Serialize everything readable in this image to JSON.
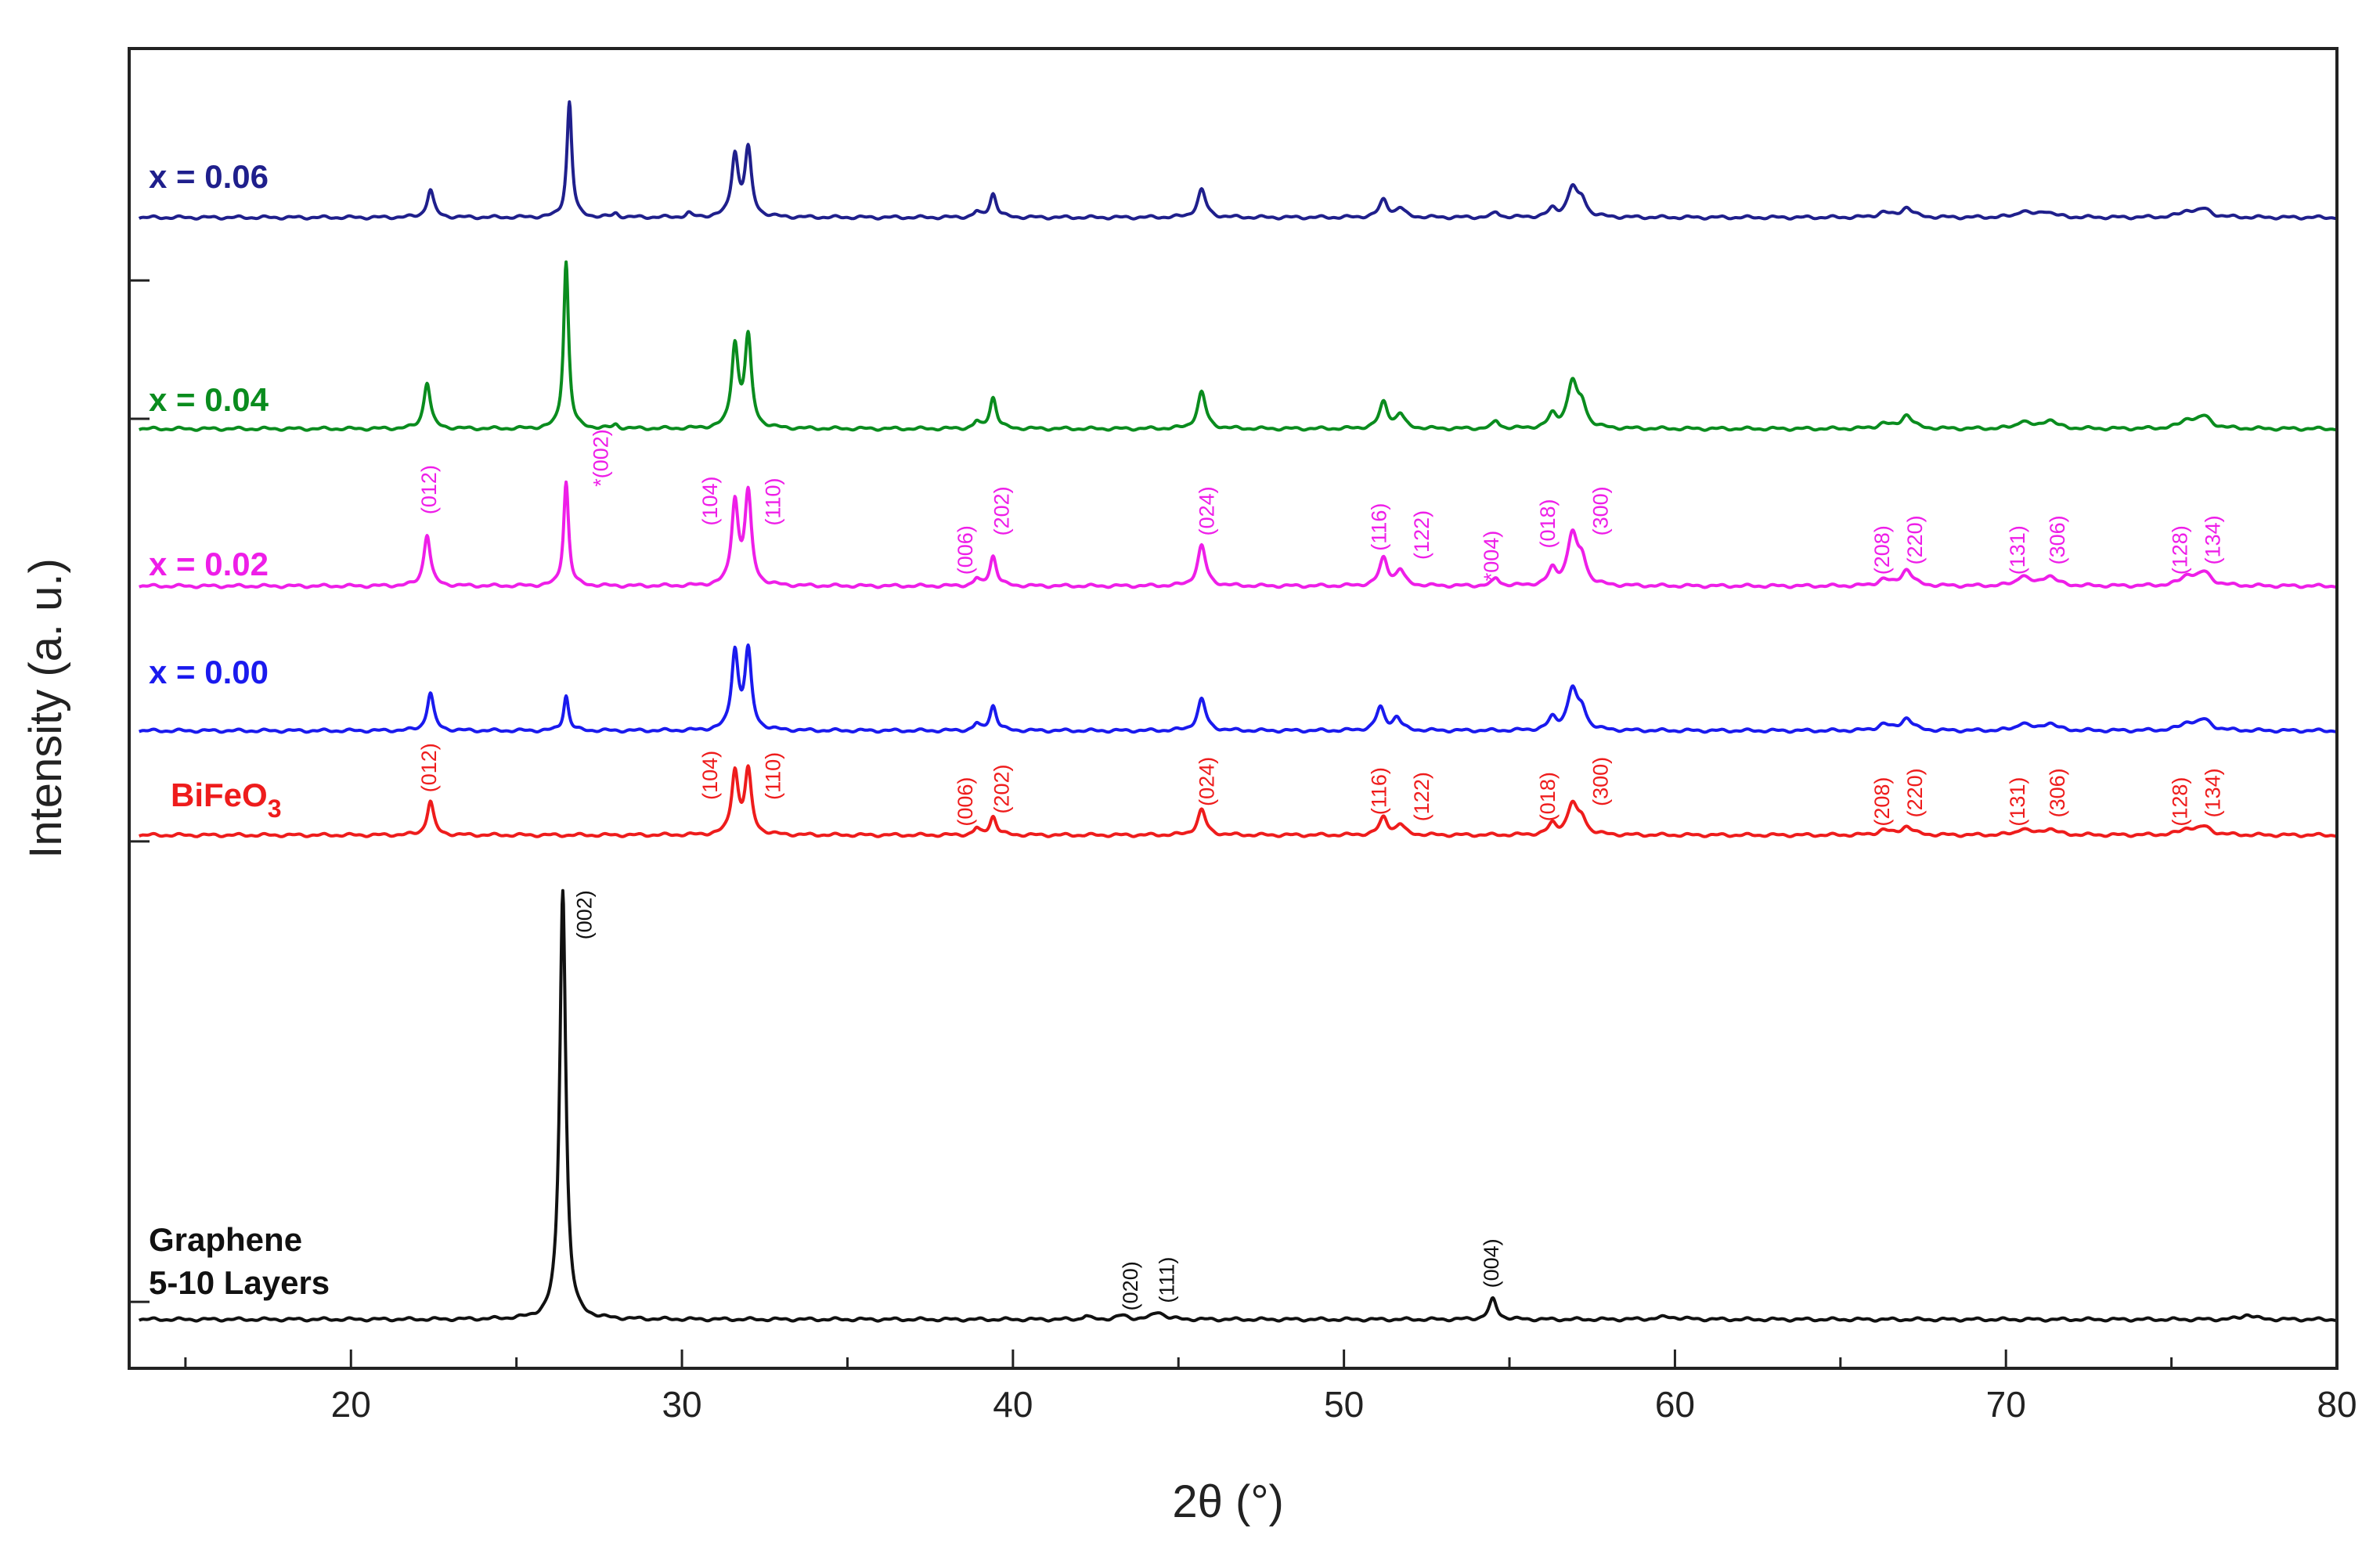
{
  "chart_data": {
    "type": "line",
    "title": "",
    "xlabel": "2θ (°)",
    "ylabel": "Intensity (a. u.)",
    "xlim": [
      13.3,
      80
    ],
    "ylim": [
      0,
      100
    ],
    "x_ticks": [
      20,
      30,
      40,
      50,
      60,
      70,
      80
    ],
    "x_tick_labels": [
      "20",
      "30",
      "40",
      "50",
      "60",
      "70",
      "80"
    ],
    "grid": false,
    "legend": "inline labels at left",
    "series": [
      {
        "name": "x = 0.06",
        "label": "x = 0.06",
        "color": "#1f1f8c",
        "baseline": 88,
        "peaks": [
          [
            22.4,
            2.2,
            0.12
          ],
          [
            26.6,
            9.2,
            0.09
          ],
          [
            28.0,
            0.3,
            0.1
          ],
          [
            30.2,
            0.3,
            0.1
          ],
          [
            31.6,
            4.9,
            0.12
          ],
          [
            32.0,
            5.3,
            0.12
          ],
          [
            38.9,
            0.4,
            0.1
          ],
          [
            39.4,
            1.9,
            0.12
          ],
          [
            45.7,
            2.2,
            0.15
          ],
          [
            51.2,
            1.4,
            0.15
          ],
          [
            51.7,
            0.7,
            0.15
          ],
          [
            54.6,
            0.4,
            0.12
          ],
          [
            56.3,
            0.6,
            0.15
          ],
          [
            56.9,
            2.3,
            0.18
          ],
          [
            57.2,
            1.2,
            0.15
          ],
          [
            66.3,
            0.4,
            0.2
          ],
          [
            67.0,
            0.8,
            0.2
          ],
          [
            70.5,
            0.5,
            0.2
          ],
          [
            71.2,
            0.5,
            0.25
          ],
          [
            75.5,
            0.5,
            0.25
          ],
          [
            76.0,
            0.6,
            0.25
          ]
        ]
      },
      {
        "name": "x = 0.04",
        "label": "x = 0.04",
        "color": "#0a8c1e",
        "baseline": 71.2,
        "peaks": [
          [
            22.3,
            3.7,
            0.12
          ],
          [
            26.5,
            13.3,
            0.09
          ],
          [
            28.0,
            0.3,
            0.1
          ],
          [
            31.6,
            6.5,
            0.12
          ],
          [
            32.0,
            7.1,
            0.12
          ],
          [
            38.9,
            0.5,
            0.1
          ],
          [
            39.4,
            2.5,
            0.12
          ],
          [
            45.7,
            2.9,
            0.15
          ],
          [
            51.2,
            2.1,
            0.15
          ],
          [
            51.7,
            1.1,
            0.15
          ],
          [
            54.6,
            0.6,
            0.12
          ],
          [
            56.3,
            1.0,
            0.15
          ],
          [
            56.9,
            3.6,
            0.18
          ],
          [
            57.2,
            1.6,
            0.15
          ],
          [
            66.3,
            0.4,
            0.2
          ],
          [
            67.0,
            1.1,
            0.2
          ],
          [
            70.5,
            0.6,
            0.2
          ],
          [
            71.3,
            0.7,
            0.25
          ],
          [
            75.5,
            0.7,
            0.25
          ],
          [
            76.0,
            0.9,
            0.25
          ]
        ]
      },
      {
        "name": "x = 0.02",
        "label": "x = 0.02",
        "color": "#ee1ee8",
        "baseline": 58.7,
        "peaks": [
          [
            22.3,
            4.1,
            0.12
          ],
          [
            26.5,
            8.3,
            0.09
          ],
          [
            31.6,
            6.6,
            0.12
          ],
          [
            32.0,
            7.2,
            0.12
          ],
          [
            38.9,
            0.5,
            0.1
          ],
          [
            39.4,
            2.4,
            0.12
          ],
          [
            45.7,
            3.2,
            0.15
          ],
          [
            51.2,
            2.2,
            0.15
          ],
          [
            51.7,
            1.2,
            0.15
          ],
          [
            54.6,
            0.6,
            0.12
          ],
          [
            56.3,
            1.2,
            0.15
          ],
          [
            56.9,
            4.0,
            0.18
          ],
          [
            57.2,
            1.8,
            0.15
          ],
          [
            66.3,
            0.5,
            0.2
          ],
          [
            67.0,
            1.3,
            0.2
          ],
          [
            70.5,
            0.8,
            0.2
          ],
          [
            71.3,
            0.8,
            0.25
          ],
          [
            75.5,
            0.8,
            0.25
          ],
          [
            76.0,
            1.0,
            0.25
          ]
        ]
      },
      {
        "name": "x = 0.00",
        "label": "x = 0.00",
        "color": "#1a1aee",
        "baseline": 47.2,
        "peaks": [
          [
            22.4,
            3.0,
            0.12
          ],
          [
            26.5,
            2.8,
            0.09
          ],
          [
            31.6,
            6.2,
            0.12
          ],
          [
            32.0,
            6.2,
            0.12
          ],
          [
            38.9,
            0.5,
            0.1
          ],
          [
            39.4,
            2.0,
            0.12
          ],
          [
            45.7,
            2.5,
            0.15
          ],
          [
            51.1,
            1.8,
            0.15
          ],
          [
            51.6,
            1.0,
            0.15
          ],
          [
            56.3,
            0.9,
            0.15
          ],
          [
            56.9,
            3.2,
            0.18
          ],
          [
            57.2,
            1.4,
            0.15
          ],
          [
            66.3,
            0.5,
            0.2
          ],
          [
            67.0,
            1.0,
            0.2
          ],
          [
            70.5,
            0.6,
            0.2
          ],
          [
            71.3,
            0.6,
            0.25
          ],
          [
            75.5,
            0.6,
            0.25
          ],
          [
            76.0,
            0.8,
            0.25
          ]
        ]
      },
      {
        "name": "BiFeO3",
        "label": "BiFeO",
        "label_subscript": "3",
        "color": "#ee1c1c",
        "baseline": 38.9,
        "peaks": [
          [
            22.4,
            2.7,
            0.12
          ],
          [
            31.6,
            5.0,
            0.12
          ],
          [
            32.0,
            5.0,
            0.12
          ],
          [
            38.9,
            0.5,
            0.1
          ],
          [
            39.4,
            1.5,
            0.12
          ],
          [
            45.7,
            2.0,
            0.15
          ],
          [
            51.2,
            1.4,
            0.15
          ],
          [
            51.7,
            0.8,
            0.15
          ],
          [
            56.3,
            0.8,
            0.15
          ],
          [
            56.9,
            2.4,
            0.18
          ],
          [
            57.2,
            1.1,
            0.15
          ],
          [
            66.3,
            0.4,
            0.2
          ],
          [
            67.0,
            0.7,
            0.2
          ],
          [
            70.5,
            0.5,
            0.2
          ],
          [
            71.3,
            0.5,
            0.25
          ],
          [
            75.5,
            0.5,
            0.25
          ],
          [
            76.0,
            0.6,
            0.25
          ]
        ]
      },
      {
        "name": "Graphene 5-10 Layers",
        "label_lines": [
          "Graphene",
          "5-10 Layers"
        ],
        "color": "#111111",
        "baseline": 0.4,
        "peaks": [
          [
            26.4,
            34.2,
            0.11
          ],
          [
            42.2,
            0.3,
            0.1
          ],
          [
            43.3,
            0.3,
            0.2
          ],
          [
            44.4,
            0.6,
            0.2
          ],
          [
            54.5,
            1.6,
            0.14
          ],
          [
            59.8,
            0.2,
            0.4
          ],
          [
            77.3,
            0.4,
            0.2
          ]
        ]
      }
    ],
    "annotations": [
      {
        "text": "(012)",
        "x": 22.4,
        "series": "x = 0.02",
        "color": "#ee1ee8",
        "level": 64.4
      },
      {
        "text": "*(002)",
        "x": 27.6,
        "series": "x = 0.02",
        "color": "#ee1ee8",
        "level": 66.6
      },
      {
        "text": "(104)",
        "x": 30.9,
        "series": "x = 0.02",
        "color": "#ee1ee8",
        "level": 63.5
      },
      {
        "text": "(110)",
        "x": 32.8,
        "series": "x = 0.02",
        "color": "#ee1ee8",
        "level": 63.5
      },
      {
        "text": "(006)",
        "x": 38.6,
        "series": "x = 0.02",
        "color": "#ee1ee8",
        "level": 59.6
      },
      {
        "text": "(202)",
        "x": 39.7,
        "series": "x = 0.02",
        "color": "#ee1ee8",
        "level": 62.7
      },
      {
        "text": "(024)",
        "x": 45.9,
        "series": "x = 0.02",
        "color": "#ee1ee8",
        "level": 62.7
      },
      {
        "text": "(116)",
        "x": 51.1,
        "series": "x = 0.02",
        "color": "#ee1ee8",
        "level": 61.5
      },
      {
        "text": "(122)",
        "x": 52.4,
        "series": "x = 0.02",
        "color": "#ee1ee8",
        "level": 60.8
      },
      {
        "text": "*004)",
        "x": 54.5,
        "series": "x = 0.02",
        "color": "#ee1ee8",
        "level": 59.1
      },
      {
        "text": "(018)",
        "x": 56.2,
        "series": "x = 0.02",
        "color": "#ee1ee8",
        "level": 61.7
      },
      {
        "text": "(300)",
        "x": 57.8,
        "series": "x = 0.02",
        "color": "#ee1ee8",
        "level": 62.7
      },
      {
        "text": "(208)",
        "x": 66.3,
        "series": "x = 0.02",
        "color": "#ee1ee8",
        "level": 59.6
      },
      {
        "text": "(220)",
        "x": 67.3,
        "series": "x = 0.02",
        "color": "#ee1ee8",
        "level": 60.4
      },
      {
        "text": "(131)",
        "x": 70.4,
        "series": "x = 0.02",
        "color": "#ee1ee8",
        "level": 59.6
      },
      {
        "text": "(306)",
        "x": 71.6,
        "series": "x = 0.02",
        "color": "#ee1ee8",
        "level": 60.4
      },
      {
        "text": "(128)",
        "x": 75.3,
        "series": "x = 0.02",
        "color": "#ee1ee8",
        "level": 59.6
      },
      {
        "text": "(134)",
        "x": 76.3,
        "series": "x = 0.02",
        "color": "#ee1ee8",
        "level": 60.4
      },
      {
        "text": "(012)",
        "x": 22.4,
        "series": "BiFeO3",
        "color": "#ee1c1c",
        "level": 42.3
      },
      {
        "text": "(104)",
        "x": 30.9,
        "series": "BiFeO3",
        "color": "#ee1c1c",
        "level": 41.7
      },
      {
        "text": "(110)",
        "x": 32.8,
        "series": "BiFeO3",
        "color": "#ee1c1c",
        "level": 41.7
      },
      {
        "text": "(006)",
        "x": 38.6,
        "series": "BiFeO3",
        "color": "#ee1c1c",
        "level": 39.6
      },
      {
        "text": "(202)",
        "x": 39.7,
        "series": "BiFeO3",
        "color": "#ee1c1c",
        "level": 40.6
      },
      {
        "text": "(024)",
        "x": 45.9,
        "series": "BiFeO3",
        "color": "#ee1c1c",
        "level": 41.2
      },
      {
        "text": "(116)",
        "x": 51.1,
        "series": "BiFeO3",
        "color": "#ee1c1c",
        "level": 40.5
      },
      {
        "text": "(122)",
        "x": 52.4,
        "series": "BiFeO3",
        "color": "#ee1c1c",
        "level": 40.0
      },
      {
        "text": "(018)",
        "x": 56.2,
        "series": "BiFeO3",
        "color": "#ee1c1c",
        "level": 40.0
      },
      {
        "text": "(300)",
        "x": 57.8,
        "series": "BiFeO3",
        "color": "#ee1c1c",
        "level": 41.2
      },
      {
        "text": "(208)",
        "x": 66.3,
        "series": "BiFeO3",
        "color": "#ee1c1c",
        "level": 39.6
      },
      {
        "text": "(220)",
        "x": 67.3,
        "series": "BiFeO3",
        "color": "#ee1c1c",
        "level": 40.3
      },
      {
        "text": "(131)",
        "x": 70.4,
        "series": "BiFeO3",
        "color": "#ee1c1c",
        "level": 39.6
      },
      {
        "text": "(306)",
        "x": 71.6,
        "series": "BiFeO3",
        "color": "#ee1c1c",
        "level": 40.3
      },
      {
        "text": "(128)",
        "x": 75.3,
        "series": "BiFeO3",
        "color": "#ee1c1c",
        "level": 39.6
      },
      {
        "text": "(134)",
        "x": 76.3,
        "series": "BiFeO3",
        "color": "#ee1c1c",
        "level": 40.3
      },
      {
        "text": "(002)",
        "x": 27.1,
        "series": "Graphene 5-10 Layers",
        "color": "#111111",
        "level": 30.6
      },
      {
        "text": "(020)",
        "x": 43.6,
        "series": "Graphene 5-10 Layers",
        "color": "#111111",
        "level": 1.1
      },
      {
        "text": "(111)",
        "x": 44.7,
        "series": "Graphene 5-10 Layers",
        "color": "#111111",
        "level": 1.7
      },
      {
        "text": "(004)",
        "x": 54.5,
        "series": "Graphene 5-10 Layers",
        "color": "#111111",
        "level": 2.9
      }
    ]
  }
}
